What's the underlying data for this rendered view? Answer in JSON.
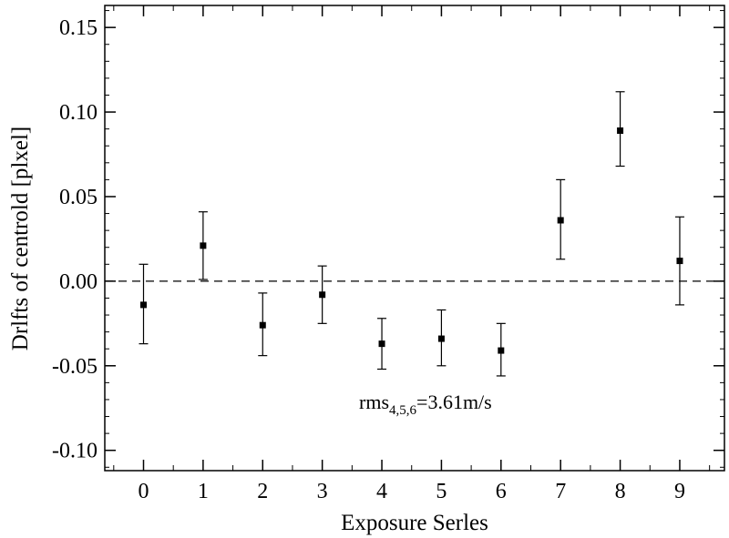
{
  "chart_data": {
    "type": "scatter",
    "xlabel": "Exposure Serles",
    "ylabel": "Drlfts of centrold [plxel]",
    "xlim": [
      -0.65,
      9.75
    ],
    "ylim": [
      -0.112,
      0.163
    ],
    "x_ticks": [
      0,
      1,
      2,
      3,
      4,
      5,
      6,
      7,
      8,
      9
    ],
    "x_tick_labels": [
      "0",
      "1",
      "2",
      "3",
      "4",
      "5",
      "6",
      "7",
      "8",
      "9"
    ],
    "y_ticks": [
      0.15,
      0.1,
      0.05,
      0.0,
      -0.05,
      -0.1
    ],
    "y_tick_labels": [
      "0.15",
      "0.10",
      "0.05",
      "0.00",
      "-0.05",
      "-0.10"
    ],
    "grid": false,
    "reference_line": {
      "y": 0.0,
      "style": "dashed"
    },
    "series": [
      {
        "x": [
          0,
          1,
          2,
          3,
          4,
          5,
          6,
          7,
          8,
          9
        ],
        "y": [
          -0.014,
          0.021,
          -0.026,
          -0.008,
          -0.037,
          -0.034,
          -0.041,
          0.036,
          0.089,
          0.012
        ],
        "err_low": [
          -0.037,
          0.001,
          -0.044,
          -0.025,
          -0.052,
          -0.05,
          -0.056,
          0.013,
          0.068,
          -0.014
        ],
        "err_high": [
          0.01,
          0.041,
          -0.007,
          0.009,
          -0.022,
          -0.017,
          -0.025,
          0.06,
          0.112,
          0.038
        ],
        "marker": "square",
        "color": "#000000"
      }
    ],
    "annotations": [
      {
        "text": "rms",
        "subscript": "4,5,6",
        "suffix": "=3.61m/s",
        "x": 4.0,
        "y": -0.071
      }
    ]
  }
}
